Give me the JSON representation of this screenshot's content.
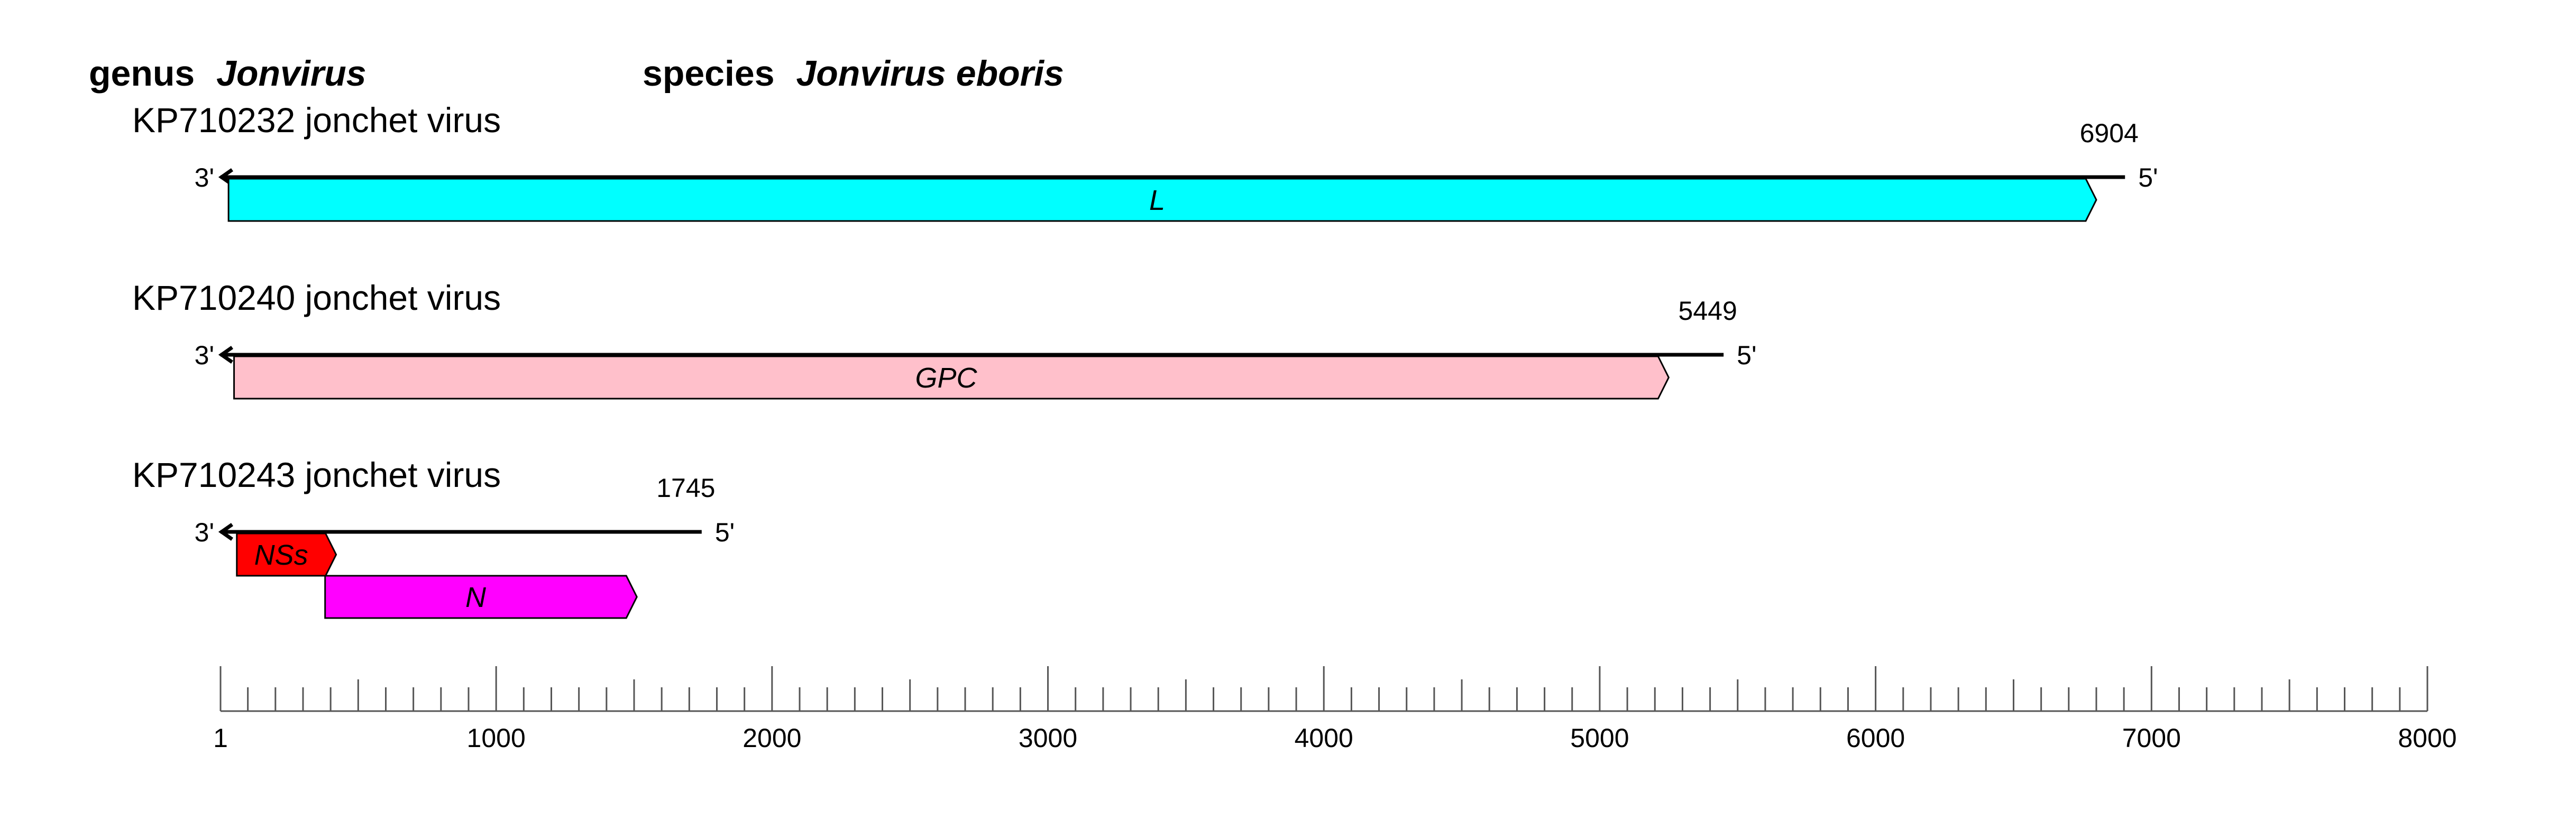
{
  "header": {
    "genus_prefix": "genus",
    "genus_name": "Jonvirus",
    "species_prefix": "species",
    "species_name": "Jonvirus eboris"
  },
  "segments": [
    {
      "title": "KP710232 jonchet virus",
      "length": 6904,
      "length_label": "6904",
      "end3": "3'",
      "end5": "5'",
      "genes": [
        {
          "label": "L",
          "start": 30,
          "end": 6800,
          "color": "#00ffff"
        }
      ]
    },
    {
      "title": "KP710240 jonchet virus",
      "length": 5449,
      "length_label": "5449",
      "end3": "3'",
      "end5": "5'",
      "genes": [
        {
          "label": "GPC",
          "start": 50,
          "end": 5250,
          "color": "#ffc0cb"
        }
      ]
    },
    {
      "title": "KP710243 jonchet virus",
      "length": 1745,
      "length_label": "1745",
      "end3": "3'",
      "end5": "5'",
      "genes": [
        {
          "label": "NSs",
          "start": 60,
          "end": 420,
          "color": "#ff0000"
        },
        {
          "label": "N",
          "start": 380,
          "end": 1510,
          "color": "#ff00ff"
        }
      ]
    }
  ],
  "scale": {
    "min": 1,
    "max": 8000,
    "minor_step": 100,
    "major_step": 1000,
    "labels": [
      "1",
      "1000",
      "2000",
      "3000",
      "4000",
      "5000",
      "6000",
      "7000",
      "8000"
    ]
  }
}
